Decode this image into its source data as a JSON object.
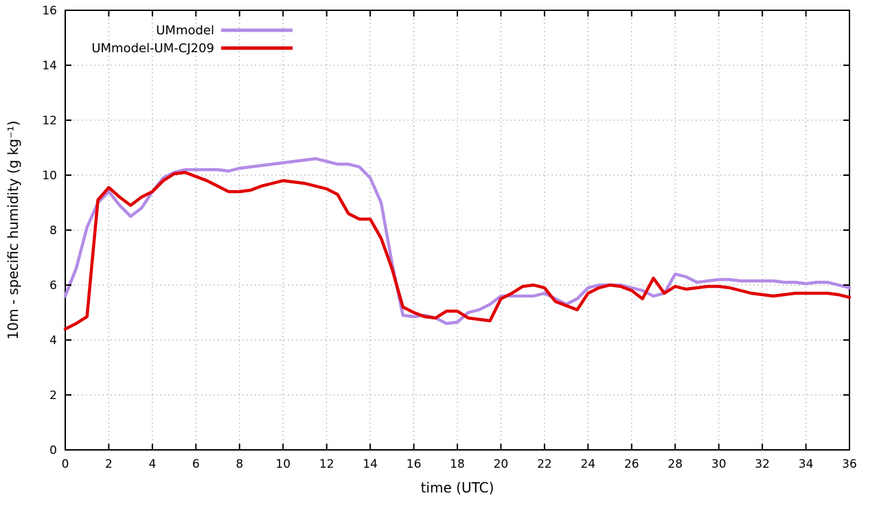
{
  "figure": {
    "background": "#ffffff",
    "border_color": "#000000",
    "grid_color": "#a9a9a9",
    "text_color": "#000000"
  },
  "chart_data": {
    "type": "line",
    "title": "",
    "xlabel": "time (UTC)",
    "ylabel": "10m - specific humidity (g kg⁻¹)",
    "xlim": [
      0,
      36
    ],
    "ylim": [
      0,
      16
    ],
    "xtick_step": 2,
    "ytick_step": 2,
    "xticks": [
      0,
      2,
      4,
      6,
      8,
      10,
      12,
      14,
      16,
      18,
      20,
      22,
      24,
      26,
      28,
      30,
      32,
      34,
      36
    ],
    "yticks": [
      0,
      2,
      4,
      6,
      8,
      10,
      12,
      14,
      16
    ],
    "grid": true,
    "grid_style": "dotted",
    "legend_position": "top-left-inside",
    "x": [
      0,
      0.5,
      1,
      1.5,
      2,
      2.5,
      3,
      3.5,
      4,
      4.5,
      5,
      5.5,
      6,
      6.5,
      7,
      7.5,
      8,
      8.5,
      9,
      9.5,
      10,
      10.5,
      11,
      11.5,
      12,
      12.5,
      13,
      13.5,
      14,
      14.5,
      15,
      15.5,
      16,
      16.5,
      17,
      17.5,
      18,
      18.5,
      19,
      19.5,
      20,
      20.5,
      21,
      21.5,
      22,
      22.5,
      23,
      23.5,
      24,
      24.5,
      25,
      25.5,
      26,
      26.5,
      27,
      27.5,
      28,
      28.5,
      29,
      29.5,
      30,
      30.5,
      31,
      31.5,
      32,
      32.5,
      33,
      33.5,
      34,
      34.5,
      35,
      35.5,
      36
    ],
    "series": [
      {
        "name": "UMmodel",
        "color": "#b38ce6",
        "linewidth": 4.5,
        "values": [
          5.6,
          6.6,
          8.1,
          9.0,
          9.4,
          8.9,
          8.5,
          8.8,
          9.4,
          9.9,
          10.1,
          10.2,
          10.2,
          10.2,
          10.2,
          10.15,
          10.25,
          10.3,
          10.35,
          10.4,
          10.45,
          10.5,
          10.55,
          10.6,
          10.5,
          10.4,
          10.4,
          10.3,
          9.9,
          9.0,
          6.8,
          4.9,
          4.85,
          4.9,
          4.8,
          4.6,
          4.65,
          5.0,
          5.1,
          5.3,
          5.6,
          5.6,
          5.6,
          5.6,
          5.7,
          5.5,
          5.3,
          5.5,
          5.9,
          6.0,
          6.0,
          6.0,
          5.9,
          5.8,
          5.6,
          5.7,
          6.4,
          6.3,
          6.1,
          6.15,
          6.2,
          6.2,
          6.15,
          6.15,
          6.15,
          6.15,
          6.1,
          6.1,
          6.05,
          6.1,
          6.1,
          6.0,
          5.9
        ]
      },
      {
        "name": "UMmodel-UM-CJ209",
        "color": "#e00000",
        "linewidth": 4.5,
        "values": [
          4.4,
          4.6,
          4.85,
          9.1,
          9.55,
          9.2,
          8.9,
          9.2,
          9.4,
          9.8,
          10.05,
          10.1,
          9.95,
          9.8,
          9.6,
          9.4,
          9.4,
          9.45,
          9.6,
          9.7,
          9.8,
          9.75,
          9.7,
          9.6,
          9.5,
          9.3,
          8.6,
          8.4,
          8.4,
          7.7,
          6.6,
          5.2,
          5.0,
          4.85,
          4.8,
          5.05,
          5.05,
          4.8,
          4.75,
          4.7,
          5.5,
          5.7,
          5.95,
          6.0,
          5.9,
          5.4,
          5.25,
          5.1,
          5.7,
          5.9,
          6.0,
          5.95,
          5.8,
          5.5,
          6.25,
          5.7,
          5.95,
          5.85,
          5.9,
          5.95,
          5.95,
          5.9,
          5.8,
          5.7,
          5.65,
          5.6,
          5.65,
          5.7,
          5.7,
          5.7,
          5.7,
          5.65,
          5.55
        ]
      }
    ]
  }
}
